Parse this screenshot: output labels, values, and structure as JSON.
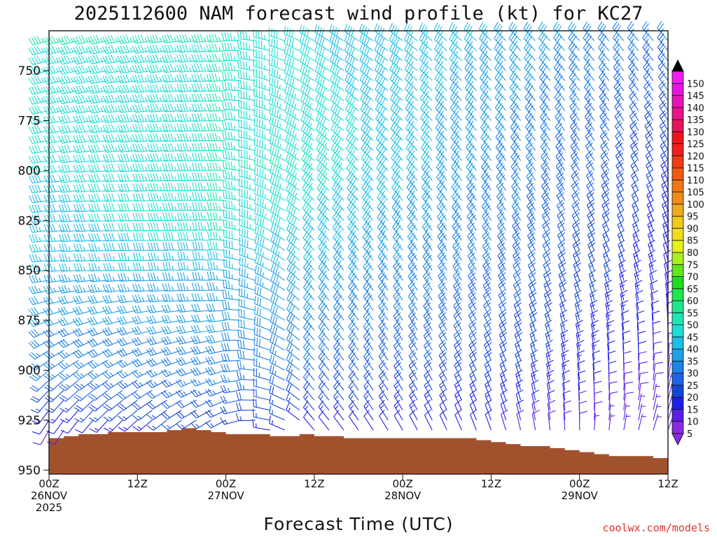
{
  "chart_data": {
    "type": "wind_barb_time_height",
    "title": "2025112600 NAM forecast wind profile (kt) for KC27",
    "xlabel": "Forecast Time (UTC)",
    "credit": "coolwx.com/models",
    "y_axis": {
      "quantity": "pressure (hPa)",
      "range": [
        730,
        952
      ],
      "ticks": [
        750,
        775,
        800,
        825,
        850,
        875,
        900,
        925,
        950
      ],
      "inverted": true
    },
    "x_axis": {
      "range_hours": [
        0,
        84
      ],
      "ticks": [
        {
          "hour": 0,
          "lines": [
            "00Z",
            "26NOV",
            "2025"
          ]
        },
        {
          "hour": 12,
          "lines": [
            "12Z"
          ]
        },
        {
          "hour": 24,
          "lines": [
            "00Z",
            "27NOV"
          ]
        },
        {
          "hour": 36,
          "lines": [
            "12Z"
          ]
        },
        {
          "hour": 48,
          "lines": [
            "00Z",
            "28NOV"
          ]
        },
        {
          "hour": 60,
          "lines": [
            "12Z"
          ]
        },
        {
          "hour": 72,
          "lines": [
            "00Z",
            "29NOV"
          ]
        },
        {
          "hour": 84,
          "lines": [
            "12Z"
          ]
        }
      ]
    },
    "barb_times_hours": [
      0,
      2,
      4,
      6,
      8,
      10,
      12,
      14,
      16,
      18,
      20,
      22,
      24,
      26,
      28,
      30,
      32,
      34,
      36,
      38,
      40,
      42,
      44,
      46,
      48,
      50,
      52,
      54,
      56,
      58,
      60,
      62,
      64,
      66,
      68,
      70,
      72,
      74,
      76,
      78,
      80,
      82,
      84
    ],
    "barb_levels_hpa": [
      735,
      740,
      745,
      750,
      755,
      760,
      765,
      770,
      775,
      780,
      785,
      790,
      795,
      800,
      805,
      810,
      815,
      820,
      825,
      830,
      835,
      840,
      845,
      850,
      855,
      860,
      865,
      870,
      875,
      880,
      885,
      890,
      895,
      900,
      905,
      910,
      915,
      920,
      925,
      930
    ],
    "wind_model": {
      "speed_kt": [
        {
          "hour": 0,
          "level_speeds": [
            [
              735,
              45
            ],
            [
              800,
              40
            ],
            [
              850,
              35
            ],
            [
              900,
              25
            ],
            [
              930,
              8
            ]
          ]
        },
        {
          "hour": 24,
          "level_speeds": [
            [
              735,
              45
            ],
            [
              800,
              45
            ],
            [
              830,
              45
            ],
            [
              850,
              35
            ],
            [
              900,
              28
            ],
            [
              930,
              15
            ]
          ]
        },
        {
          "hour": 36,
          "level_speeds": [
            [
              735,
              40
            ],
            [
              800,
              45
            ],
            [
              850,
              35
            ],
            [
              900,
              25
            ],
            [
              930,
              12
            ]
          ]
        },
        {
          "hour": 60,
          "level_speeds": [
            [
              735,
              35
            ],
            [
              800,
              30
            ],
            [
              850,
              25
            ],
            [
              900,
              18
            ],
            [
              930,
              10
            ]
          ]
        },
        {
          "hour": 84,
          "level_speeds": [
            [
              735,
              25
            ],
            [
              800,
              15
            ],
            [
              850,
              12
            ],
            [
              900,
              8
            ],
            [
              930,
              5
            ]
          ]
        }
      ],
      "direction_deg": [
        {
          "hour": 0,
          "level_dirs": [
            [
              735,
              255
            ],
            [
              850,
              265
            ],
            [
              930,
              210
            ]
          ]
        },
        {
          "hour": 24,
          "level_dirs": [
            [
              735,
              265
            ],
            [
              850,
              275
            ],
            [
              930,
              240
            ]
          ]
        },
        {
          "hour": 36,
          "level_dirs": [
            [
              735,
              300
            ],
            [
              850,
              320
            ],
            [
              930,
              320
            ]
          ]
        },
        {
          "hour": 60,
          "level_dirs": [
            [
              735,
              315
            ],
            [
              850,
              330
            ],
            [
              930,
              340
            ]
          ]
        },
        {
          "hour": 84,
          "level_dirs": [
            [
              735,
              320
            ],
            [
              850,
              345
            ],
            [
              930,
              20
            ]
          ]
        }
      ]
    },
    "terrain_surface_pressure_hpa": [
      [
        0,
        934
      ],
      [
        2,
        933
      ],
      [
        4,
        932
      ],
      [
        6,
        932
      ],
      [
        8,
        931
      ],
      [
        10,
        931
      ],
      [
        12,
        931
      ],
      [
        14,
        931
      ],
      [
        16,
        930
      ],
      [
        18,
        929
      ],
      [
        20,
        930
      ],
      [
        22,
        931
      ],
      [
        24,
        932
      ],
      [
        26,
        932
      ],
      [
        28,
        932
      ],
      [
        30,
        933
      ],
      [
        32,
        933
      ],
      [
        34,
        932
      ],
      [
        36,
        933
      ],
      [
        38,
        933
      ],
      [
        40,
        934
      ],
      [
        42,
        934
      ],
      [
        44,
        934
      ],
      [
        46,
        934
      ],
      [
        48,
        934
      ],
      [
        50,
        934
      ],
      [
        52,
        934
      ],
      [
        54,
        934
      ],
      [
        56,
        934
      ],
      [
        58,
        935
      ],
      [
        60,
        936
      ],
      [
        62,
        937
      ],
      [
        64,
        938
      ],
      [
        66,
        938
      ],
      [
        68,
        939
      ],
      [
        70,
        940
      ],
      [
        72,
        941
      ],
      [
        74,
        942
      ],
      [
        76,
        943
      ],
      [
        78,
        943
      ],
      [
        80,
        943
      ],
      [
        82,
        944
      ],
      [
        84,
        944
      ]
    ],
    "terrain_color": "#a0522d",
    "colorbar": {
      "levels": [
        5,
        10,
        15,
        20,
        25,
        30,
        35,
        40,
        45,
        50,
        55,
        60,
        65,
        70,
        75,
        80,
        85,
        90,
        95,
        100,
        105,
        110,
        115,
        120,
        125,
        130,
        135,
        140,
        145,
        150
      ],
      "colors": [
        "#8a2be2",
        "#5a1ee8",
        "#1e1ee8",
        "#1446d6",
        "#1e64e6",
        "#1e82e6",
        "#1ea0e6",
        "#1ebee6",
        "#1edcd2",
        "#1ee6b4",
        "#1ee68c",
        "#1ee650",
        "#1edc1e",
        "#64e61e",
        "#aaf01e",
        "#e6f01e",
        "#f0dc1e",
        "#f0c81e",
        "#f0aa1e",
        "#f08c1e",
        "#f07814",
        "#f05a14",
        "#f03c14",
        "#f01e1e",
        "#f0141e",
        "#e6145a",
        "#e6148c",
        "#e614b4",
        "#e614dc",
        "#f01ef0"
      ]
    }
  }
}
